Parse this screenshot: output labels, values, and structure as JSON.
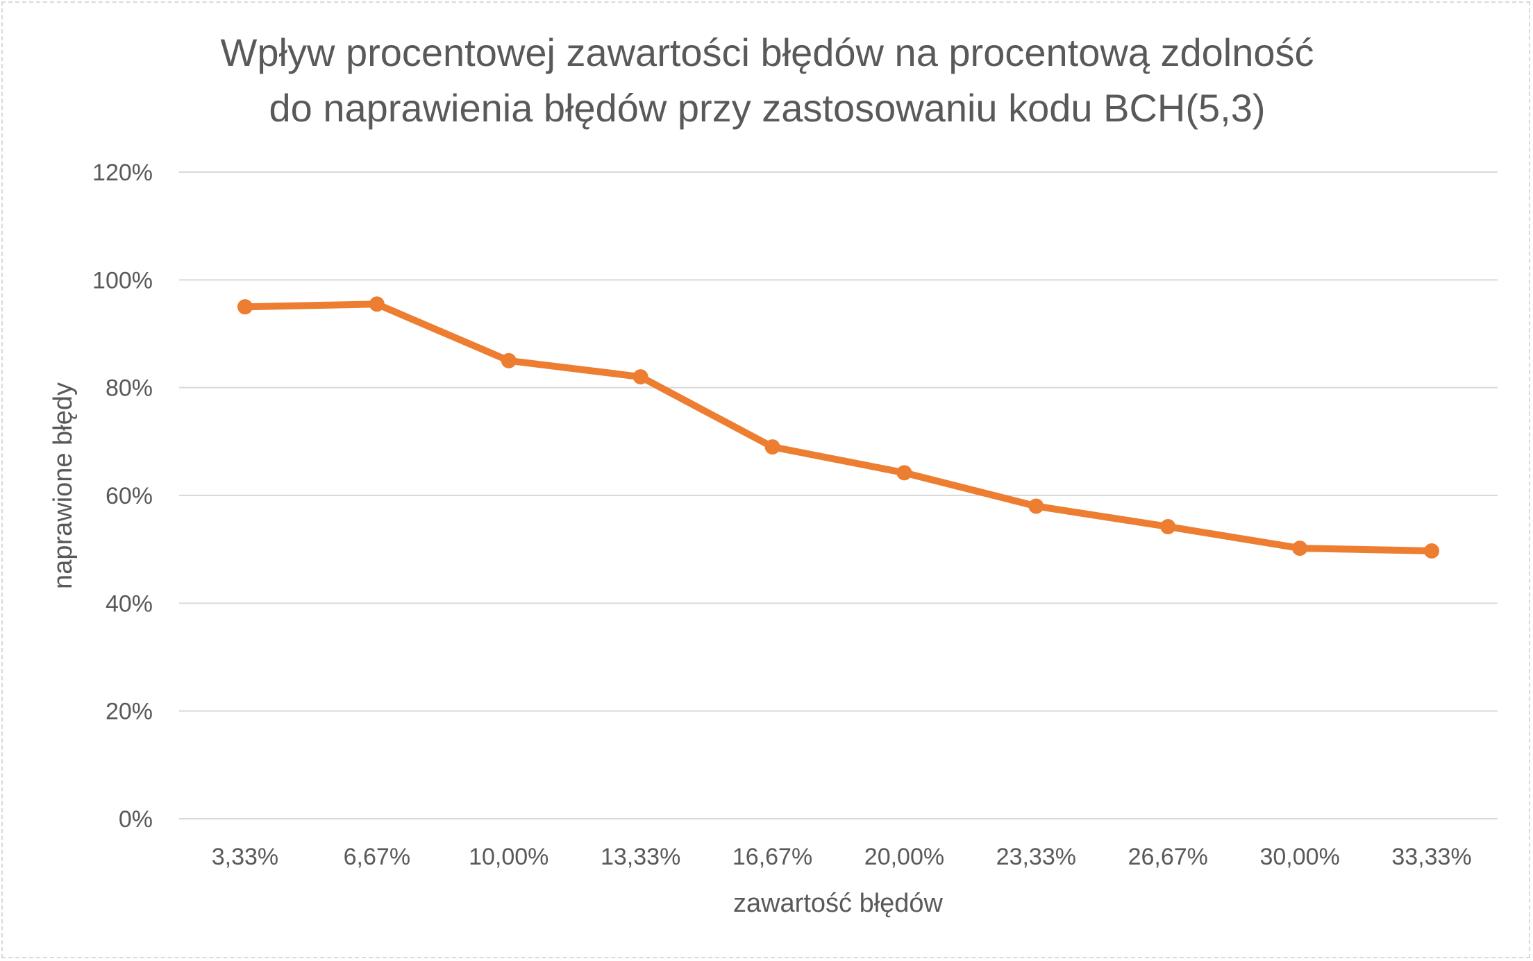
{
  "chart_data": {
    "type": "line",
    "title_lines": [
      "Wpływ procentowej zawartości błędów na procentową zdolność",
      "do naprawienia błędów przy zastosowaniu kodu BCH(5,3)"
    ],
    "xlabel": "zawartość błędów",
    "ylabel": "naprawione błędy",
    "categories": [
      "3,33%",
      "6,67%",
      "10,00%",
      "13,33%",
      "16,67%",
      "20,00%",
      "23,33%",
      "26,67%",
      "30,00%",
      "33,33%"
    ],
    "series": [
      {
        "values": [
          0.95,
          0.955,
          0.85,
          0.82,
          0.69,
          0.642,
          0.58,
          0.542,
          0.502,
          0.497
        ],
        "color": "#ED7D31"
      }
    ],
    "yticks": [
      {
        "value": 0,
        "label": "0%"
      },
      {
        "value": 0.2,
        "label": "20%"
      },
      {
        "value": 0.4,
        "label": "40%"
      },
      {
        "value": 0.6,
        "label": "60%"
      },
      {
        "value": 0.8,
        "label": "80%"
      },
      {
        "value": 1.0,
        "label": "100%"
      },
      {
        "value": 1.2,
        "label": "120%"
      }
    ],
    "ylim": [
      0,
      1.2
    ],
    "grid": true,
    "legend": "none",
    "gridline_color": "#D9D9D9",
    "text_color": "#595959"
  }
}
